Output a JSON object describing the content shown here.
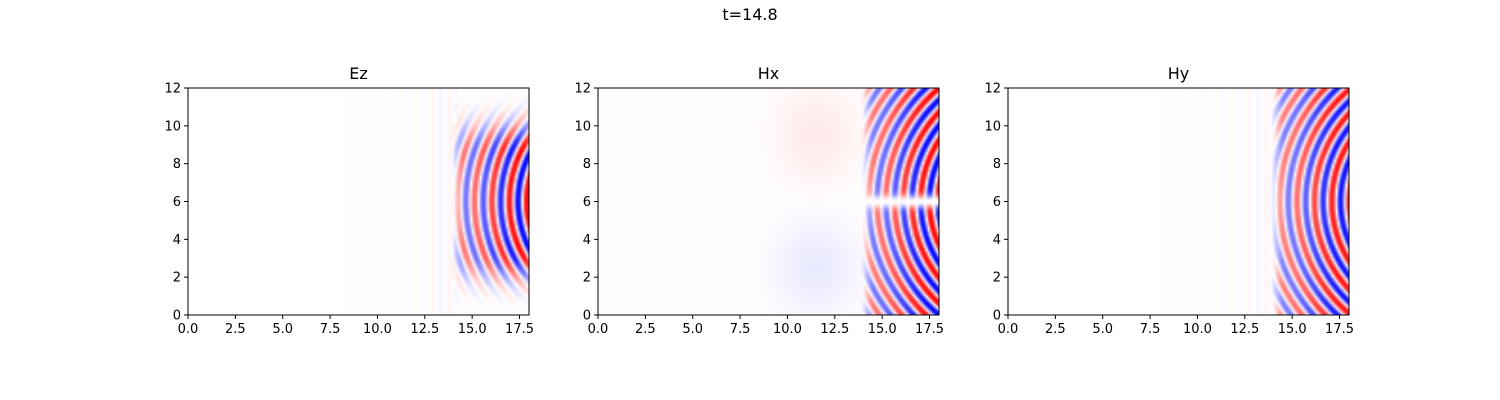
{
  "figure": {
    "suptitle": "t=14.8"
  },
  "colormap": {
    "name": "bwr",
    "negative": "#0000ff",
    "zero": "#ffffff",
    "positive": "#ff0000"
  },
  "chart_data": [
    {
      "type": "heatmap",
      "title": "Ez",
      "xlim": [
        0,
        18
      ],
      "ylim": [
        0,
        12
      ],
      "xticks": [
        "0.0",
        "2.5",
        "5.0",
        "7.5",
        "10.0",
        "12.5",
        "15.0",
        "17.5"
      ],
      "xtick_values": [
        0,
        2.5,
        5,
        7.5,
        10,
        12.5,
        15,
        17.5
      ],
      "yticks": [
        "0",
        "2",
        "4",
        "6",
        "8",
        "10",
        "12"
      ],
      "ytick_values": [
        0,
        2,
        4,
        6,
        8,
        10,
        12
      ],
      "field": {
        "kind": "Ez",
        "front_x": 14.2,
        "source_x": 23,
        "source_y": 6,
        "wavelength": 0.92,
        "peak_amplitude": 1.0
      }
    },
    {
      "type": "heatmap",
      "title": "Hx",
      "xlim": [
        0,
        18
      ],
      "ylim": [
        0,
        12
      ],
      "xticks": [
        "0.0",
        "2.5",
        "5.0",
        "7.5",
        "10.0",
        "12.5",
        "15.0",
        "17.5"
      ],
      "xtick_values": [
        0,
        2.5,
        5,
        7.5,
        10,
        12.5,
        15,
        17.5
      ],
      "yticks": [
        "0",
        "2",
        "4",
        "6",
        "8",
        "10",
        "12"
      ],
      "ytick_values": [
        0,
        2,
        4,
        6,
        8,
        10,
        12
      ],
      "field": {
        "kind": "Hx",
        "front_x": 14.2,
        "source_x": 23,
        "source_y": 6,
        "wavelength": 0.92,
        "peak_amplitude": 1.0
      }
    },
    {
      "type": "heatmap",
      "title": "Hy",
      "xlim": [
        0,
        18
      ],
      "ylim": [
        0,
        12
      ],
      "xticks": [
        "0.0",
        "2.5",
        "5.0",
        "7.5",
        "10.0",
        "12.5",
        "15.0",
        "17.5"
      ],
      "xtick_values": [
        0,
        2.5,
        5,
        7.5,
        10,
        12.5,
        15,
        17.5
      ],
      "yticks": [
        "0",
        "2",
        "4",
        "6",
        "8",
        "10",
        "12"
      ],
      "ytick_values": [
        0,
        2,
        4,
        6,
        8,
        10,
        12
      ],
      "field": {
        "kind": "Hy",
        "front_x": 14.2,
        "source_x": 23,
        "source_y": 6,
        "wavelength": 0.92,
        "peak_amplitude": 1.0
      }
    }
  ]
}
